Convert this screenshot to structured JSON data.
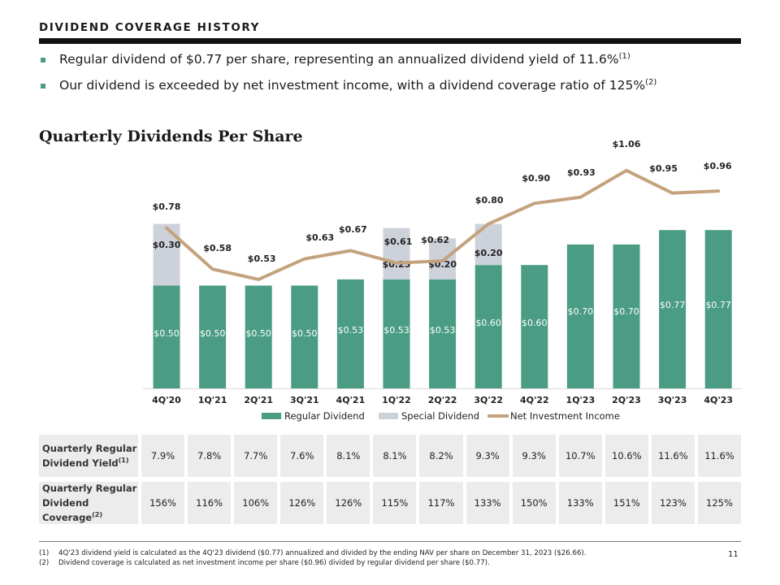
{
  "header": {
    "title": "DIVIDEND COVERAGE HISTORY"
  },
  "bullets": [
    {
      "text": "Regular dividend of $0.77 per share, representing an annualized dividend yield of 11.6%",
      "ref": "(1)"
    },
    {
      "text": "Our dividend is exceeded by net investment income, with a dividend coverage ratio of 125%",
      "ref": "(2)"
    }
  ],
  "colors": {
    "regular": "#4a9c84",
    "special": "#cdd1da",
    "nii": "#c4a27d",
    "accent": "#4a9c84"
  },
  "chart_data": {
    "type": "bar",
    "title": "Quarterly Dividends Per Share",
    "categories": [
      "4Q'20",
      "1Q'21",
      "2Q'21",
      "3Q'21",
      "4Q'21",
      "1Q'22",
      "2Q'22",
      "3Q'22",
      "4Q'22",
      "1Q'23",
      "2Q'23",
      "3Q'23",
      "4Q'23"
    ],
    "stacked": true,
    "series": [
      {
        "name": "Regular Dividend",
        "kind": "bar",
        "values": [
          0.5,
          0.5,
          0.5,
          0.5,
          0.53,
          0.53,
          0.53,
          0.6,
          0.6,
          0.7,
          0.7,
          0.77,
          0.77
        ],
        "labels": [
          "$0.50",
          "$0.50",
          "$0.50",
          "$0.50",
          "$0.53",
          "$0.53",
          "$0.53",
          "$0.60",
          "$0.60",
          "$0.70",
          "$0.70",
          "$0.77",
          "$0.77"
        ]
      },
      {
        "name": "Special Dividend",
        "kind": "bar",
        "values": [
          0.3,
          0,
          0,
          0,
          0,
          0.25,
          0.2,
          0.2,
          0,
          0,
          0,
          0,
          0
        ],
        "labels": [
          "$0.30",
          "",
          "",
          "",
          "",
          "$0.25",
          "$0.20",
          "$0.20",
          "",
          "",
          "",
          "",
          ""
        ]
      },
      {
        "name": "Net Investment Income",
        "kind": "line",
        "values": [
          0.78,
          0.58,
          0.53,
          0.63,
          0.67,
          0.61,
          0.62,
          0.8,
          0.9,
          0.93,
          1.06,
          0.95,
          0.96
        ],
        "labels": [
          "$0.78",
          "$0.58",
          "$0.53",
          "$0.63",
          "$0.67",
          "$0.61",
          "$0.62",
          "$0.80",
          "$0.90",
          "$0.93",
          "$1.06",
          "$0.95",
          "$0.96"
        ]
      }
    ],
    "ylim": [
      0,
      1.06
    ],
    "grid": false,
    "legend_position": "bottom"
  },
  "table": {
    "rows": [
      {
        "label": "Quarterly Regular",
        "label2": "Dividend Yield",
        "ref": "(1)",
        "values": [
          "7.9%",
          "7.8%",
          "7.7%",
          "7.6%",
          "8.1%",
          "8.1%",
          "8.2%",
          "9.3%",
          "9.3%",
          "10.7%",
          "10.6%",
          "11.6%",
          "11.6%"
        ]
      },
      {
        "label": "Quarterly Regular",
        "label2": "Dividend Coverage",
        "ref": "(2)",
        "values": [
          "156%",
          "116%",
          "106%",
          "126%",
          "126%",
          "115%",
          "117%",
          "133%",
          "150%",
          "133%",
          "151%",
          "123%",
          "125%"
        ]
      }
    ]
  },
  "footnotes": [
    {
      "num": "(1)",
      "text": "4Q'23 dividend yield is calculated as the 4Q'23 dividend ($0.77) annualized and divided by the ending NAV per share on December 31, 2023 ($26.66)."
    },
    {
      "num": "(2)",
      "text": "Dividend coverage is calculated as net investment income per share ($0.96) divided by regular dividend per share ($0.77)."
    }
  ],
  "page_number": "11"
}
